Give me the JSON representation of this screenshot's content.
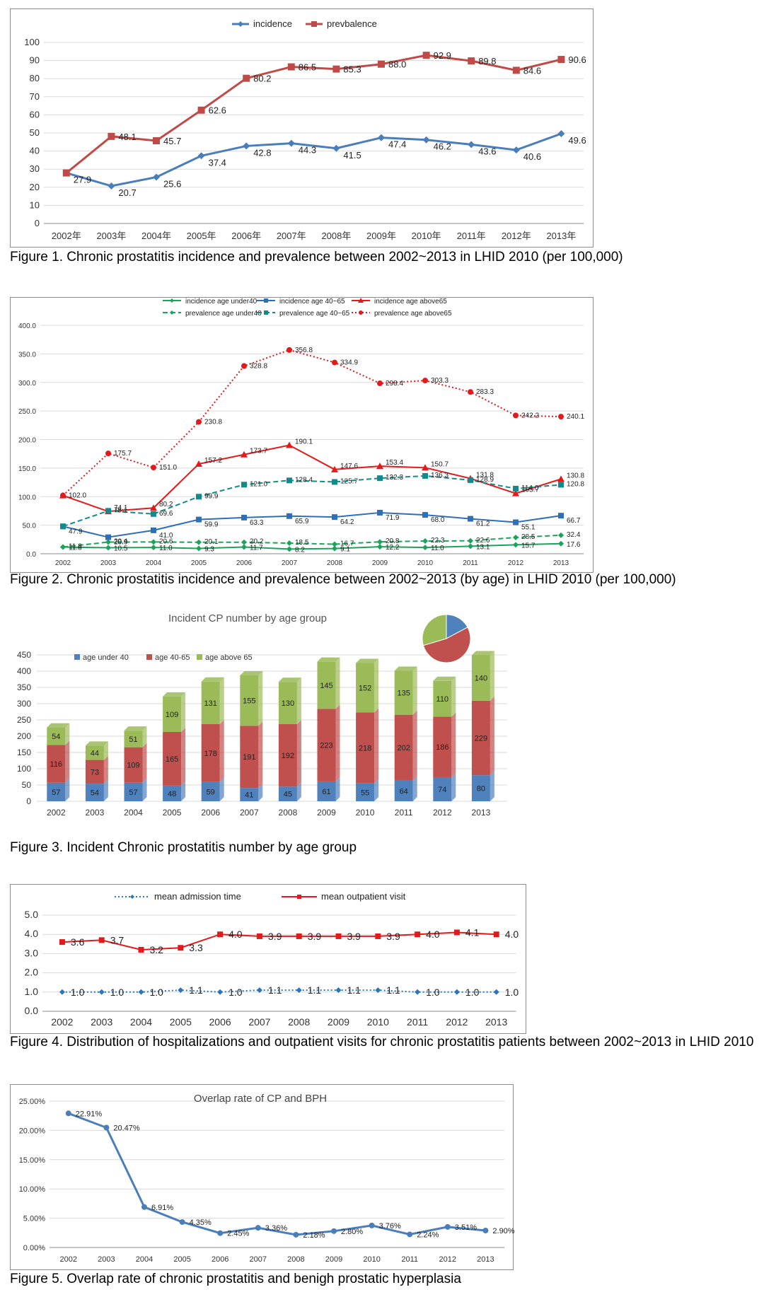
{
  "chart_data": [
    {
      "type": "line",
      "categories": [
        "2002年",
        "2003年",
        "2004年",
        "2005年",
        "2006年",
        "2007年",
        "2008年",
        "2009年",
        "2010年",
        "2011年",
        "2012年",
        "2013年"
      ],
      "ylim": [
        0,
        100
      ],
      "yticks": [
        "0",
        "10",
        "20",
        "30",
        "40",
        "50",
        "60",
        "70",
        "80",
        "90",
        "100"
      ],
      "legend": "top-center",
      "grid": true,
      "series": [
        {
          "name": "incidence",
          "color": "#4a7ebb",
          "marker": "diamond",
          "values": [
            27.9,
            20.7,
            25.6,
            37.4,
            42.8,
            44.3,
            41.5,
            47.4,
            46.2,
            43.6,
            40.6,
            49.6
          ],
          "labels": [
            "27.9",
            "20.7",
            "25.6",
            "37.4",
            "42.8",
            "44.3",
            "41.5",
            "47.4",
            "46.2",
            "43.6",
            "40.6",
            "49.6"
          ]
        },
        {
          "name": "prevbalence",
          "color": "#be4b48",
          "marker": "square",
          "values": [
            27.9,
            48.1,
            45.7,
            62.6,
            80.2,
            86.5,
            85.3,
            88.0,
            92.9,
            89.8,
            84.6,
            90.6
          ],
          "labels": [
            "",
            "48.1",
            "45.7",
            "62.6",
            "80.2",
            "86.5",
            "85.3",
            "88.0",
            "92.9",
            "89.8",
            "84.6",
            "90.6"
          ]
        }
      ],
      "caption": "Figure 1. Chronic prostatitis incidence and prevalence between 2002~2013 in LHID 2010 (per 100,000)"
    },
    {
      "type": "line",
      "categories": [
        "2002",
        "2003",
        "2004",
        "2005",
        "2006",
        "2007",
        "2008",
        "2009",
        "2010",
        "2011",
        "2012",
        "2013"
      ],
      "ylim": [
        0,
        400
      ],
      "yticks": [
        "0.0",
        "50.0",
        "100.0",
        "150.0",
        "200.0",
        "250.0",
        "300.0",
        "350.0",
        "400.0"
      ],
      "legend": "top-center",
      "grid": true,
      "series": [
        {
          "name": "incidence age under40",
          "color": "#1aa35a",
          "dash": "solid",
          "marker": "diamond",
          "values": [
            11.8,
            10.5,
            11.0,
            9.3,
            11.7,
            8.2,
            9.1,
            12.2,
            11.0,
            13.1,
            15.7,
            17.6
          ],
          "labels": [
            "11.8",
            "10.5",
            "11.0",
            "9.3",
            "11.7",
            "8.2",
            "9.1",
            "12.2",
            "11.0",
            "13.1",
            "15.7",
            "17.6"
          ]
        },
        {
          "name": "incidence age 40~65",
          "color": "#2e6fb5",
          "dash": "solid",
          "marker": "square",
          "values": [
            47.9,
            28.9,
            41.0,
            59.9,
            63.3,
            65.9,
            64.2,
            71.9,
            68.0,
            61.2,
            55.1,
            66.7
          ],
          "labels": [
            "47.9",
            "28.9",
            "41.0",
            "59.9",
            "63.3",
            "65.9",
            "64.2",
            "71.9",
            "68.0",
            "61.2",
            "55.1",
            "66.7"
          ]
        },
        {
          "name": "incidence age above65",
          "color": "#e31a1c",
          "dash": "solid",
          "marker": "triangle",
          "values": [
            102.0,
            74.1,
            80.2,
            157.2,
            173.7,
            190.1,
            147.6,
            153.4,
            150.7,
            131.8,
            105.7,
            130.8
          ],
          "labels": [
            "",
            "74.1",
            "80.2",
            "157.2",
            "173.7",
            "190.1",
            "147.6",
            "153.4",
            "150.7",
            "131.8",
            "105.7",
            "130.8"
          ]
        },
        {
          "name": "prevalence age under40",
          "color": "#1aa35a",
          "dash": "dashed",
          "marker": "diamond",
          "values": [
            11.8,
            20.4,
            20.6,
            20.1,
            20.2,
            18.5,
            16.7,
            20.8,
            22.3,
            22.6,
            28.5,
            32.4
          ],
          "labels": [
            "11.8",
            "20.4",
            "20.6",
            "20.1",
            "20.2",
            "18.5",
            "16.7",
            "20.8",
            "22.3",
            "22.6",
            "28.5",
            "32.4"
          ]
        },
        {
          "name": "prevalence age 40~65",
          "color": "#138a8a",
          "dash": "dashed",
          "marker": "square",
          "values": [
            47.9,
            75.1,
            69.6,
            99.9,
            121.0,
            128.4,
            125.7,
            132.3,
            136.3,
            128.9,
            114.0,
            120.8
          ],
          "labels": [
            "",
            "75.1",
            "69.6",
            "99.9",
            "121.0",
            "128.4",
            "125.7",
            "132.3",
            "136.3",
            "128.9",
            "114.0",
            "120.8"
          ]
        },
        {
          "name": "prevalence age above65",
          "color": "#e31a1c",
          "dash": "dotted",
          "marker": "circle",
          "values": [
            102.0,
            175.7,
            151.0,
            230.8,
            328.8,
            356.8,
            334.9,
            298.4,
            303.3,
            283.3,
            242.2,
            240.1
          ],
          "labels": [
            "102.0",
            "175.7",
            "151.0",
            "230.8",
            "328.8",
            "356.8",
            "334.9",
            "298.4",
            "303.3",
            "283.3",
            "242.2",
            "240.1"
          ]
        }
      ],
      "caption": "Figure 2. Chronic prostatitis incidence and prevalence between 2002~2013 (by age) in LHID 2010 (per 100,000)"
    },
    {
      "type": "bar",
      "title": "Incident CP number by age group",
      "stacked": true,
      "categories": [
        "2002",
        "2003",
        "2004",
        "2005",
        "2006",
        "2007",
        "2008",
        "2009",
        "2010",
        "2011",
        "2012",
        "2013"
      ],
      "ylim": [
        0,
        450
      ],
      "yticks": [
        "0",
        "50",
        "100",
        "150",
        "200",
        "250",
        "300",
        "350",
        "400",
        "450"
      ],
      "legend": "top-left",
      "grid": true,
      "series": [
        {
          "name": "age under 40",
          "color": "#4f81bd",
          "values": [
            57,
            54,
            57,
            48,
            59,
            41,
            45,
            61,
            55,
            64,
            74,
            80
          ]
        },
        {
          "name": "age 40-65",
          "color": "#c0504d",
          "values": [
            116,
            73,
            109,
            165,
            178,
            191,
            192,
            223,
            218,
            202,
            186,
            229
          ]
        },
        {
          "name": "age above 65",
          "color": "#9bbb59",
          "values": [
            54,
            44,
            51,
            109,
            131,
            155,
            130,
            145,
            152,
            135,
            110,
            140
          ]
        }
      ],
      "inset_pie": {
        "labels": [
          "",
          "",
          ""
        ],
        "values": [
          0.172,
          0.532,
          0.296
        ],
        "colors": [
          "#4f81bd",
          "#c0504d",
          "#9bbb59"
        ]
      },
      "caption": "Figure 3. Incident Chronic prostatitis number by age group"
    },
    {
      "type": "line",
      "categories": [
        "2002",
        "2003",
        "2004",
        "2005",
        "2006",
        "2007",
        "2008",
        "2009",
        "2010",
        "2011",
        "2012",
        "2013"
      ],
      "ylim": [
        0,
        5
      ],
      "yticks": [
        "0.0",
        "1.0",
        "2.0",
        "3.0",
        "4.0",
        "5.0"
      ],
      "legend": "top-center",
      "grid": true,
      "series": [
        {
          "name": "mean admission time",
          "color": "#2e75b6",
          "dash": "dotted",
          "marker": "diamond",
          "values": [
            1.0,
            1.0,
            1.0,
            1.1,
            1.0,
            1.1,
            1.1,
            1.1,
            1.1,
            1.0,
            1.0,
            1.0
          ],
          "labels": [
            "1.0",
            "1.0",
            "1.0",
            "1.1",
            "1.0",
            "1.1",
            "1.1",
            "1.1",
            "1.1",
            "1.0",
            "1.0",
            "1.0"
          ]
        },
        {
          "name": "mean outpatient visit",
          "color": "#e31a1c",
          "dash": "solid",
          "marker": "square",
          "values": [
            3.6,
            3.7,
            3.2,
            3.3,
            4.0,
            3.9,
            3.9,
            3.9,
            3.9,
            4.0,
            4.1,
            4.0
          ],
          "labels": [
            "3.6",
            "3.7",
            "3.2",
            "3.3",
            "4.0",
            "3.9",
            "3.9",
            "3.9",
            "3.9",
            "4.0",
            "4.1",
            "4.0"
          ]
        }
      ],
      "caption": "Figure 4. Distribution of hospitalizations and outpatient visits for chronic prostatitis patients between 2002~2013 in LHID 2010"
    },
    {
      "type": "line",
      "title": "Overlap rate of CP and BPH",
      "categories": [
        "2002",
        "2003",
        "2004",
        "2005",
        "2006",
        "2007",
        "2008",
        "2009",
        "2010",
        "2011",
        "2012",
        "2013"
      ],
      "ylim": [
        0,
        25
      ],
      "yticks": [
        "0.00%",
        "5.00%",
        "10.00%",
        "15.00%",
        "20.00%",
        "25.00%"
      ],
      "grid": true,
      "series": [
        {
          "color": "#4a7ebb",
          "marker": "circle",
          "values": [
            22.91,
            20.47,
            6.91,
            4.35,
            2.45,
            3.36,
            2.18,
            2.8,
            3.76,
            2.24,
            3.51,
            2.9
          ],
          "labels": [
            "22.91%",
            "20.47%",
            "6.91%",
            "4.35%",
            "2.45%",
            "3.36%",
            "2.18%",
            "2.80%",
            "3.76%",
            "2.24%",
            "3.51%",
            "2.90%"
          ]
        }
      ],
      "caption": "Figure 5. Overlap rate of chronic prostatitis and benigh prostatic hyperplasia"
    }
  ]
}
